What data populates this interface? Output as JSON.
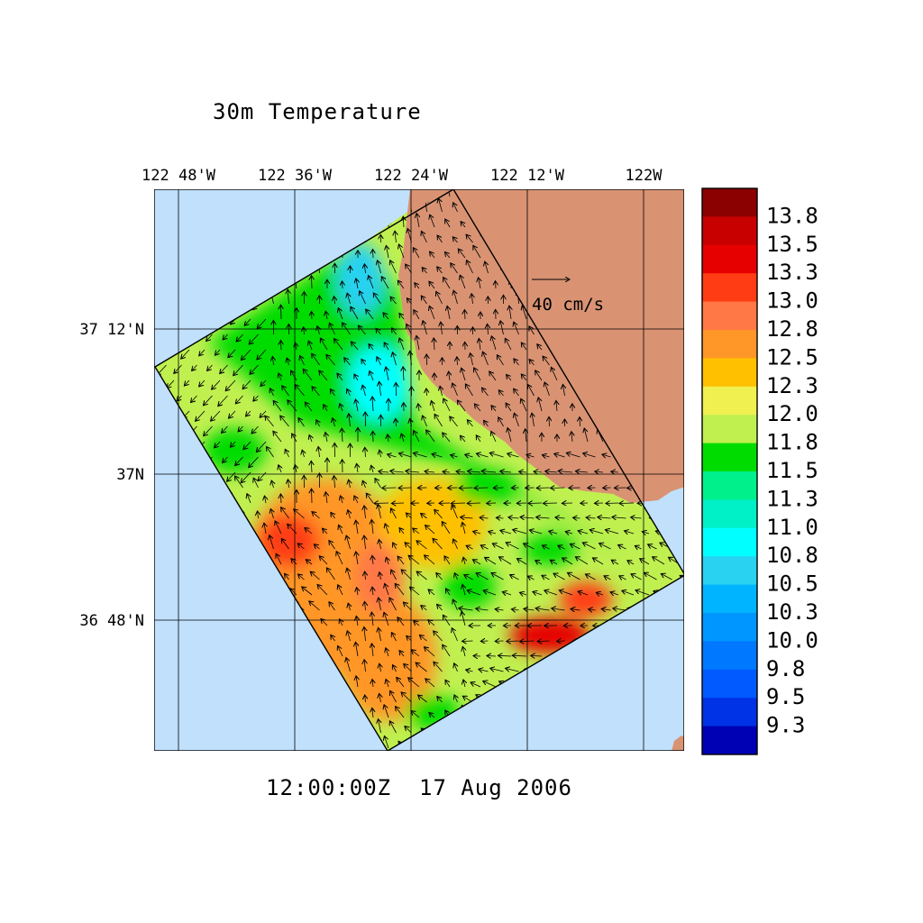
{
  "title": "30m Temperature",
  "timestamp": "12:00:00Z  17 Aug 2006",
  "longitude_labels": [
    "122 48'W",
    "122 36'W",
    "122 24'W",
    "122 12'W",
    "122W"
  ],
  "latitude_labels": [
    "37 12'N",
    "37N",
    "36 48'N"
  ],
  "vector_scale": {
    "label": "40 cm/s"
  },
  "colorbar": {
    "labels": [
      "13.8",
      "13.5",
      "13.3",
      "13.0",
      "12.8",
      "12.5",
      "12.3",
      "12.0",
      "11.8",
      "11.5",
      "11.3",
      "11.0",
      "10.8",
      "10.5",
      "10.3",
      "10.0",
      "9.8",
      "9.5",
      "9.3"
    ],
    "colors": [
      "#8b0000",
      "#c80000",
      "#e60000",
      "#ff3c14",
      "#ff7846",
      "#ff9628",
      "#ffc000",
      "#f0f050",
      "#c0f050",
      "#00dc00",
      "#00f08c",
      "#00f0c8",
      "#00ffff",
      "#28d2f0",
      "#00b4ff",
      "#0096ff",
      "#0078ff",
      "#005aff",
      "#0032e6",
      "#0000b4"
    ]
  },
  "colors": {
    "ocean": "#c0e0fc",
    "land": "#d99373"
  }
}
